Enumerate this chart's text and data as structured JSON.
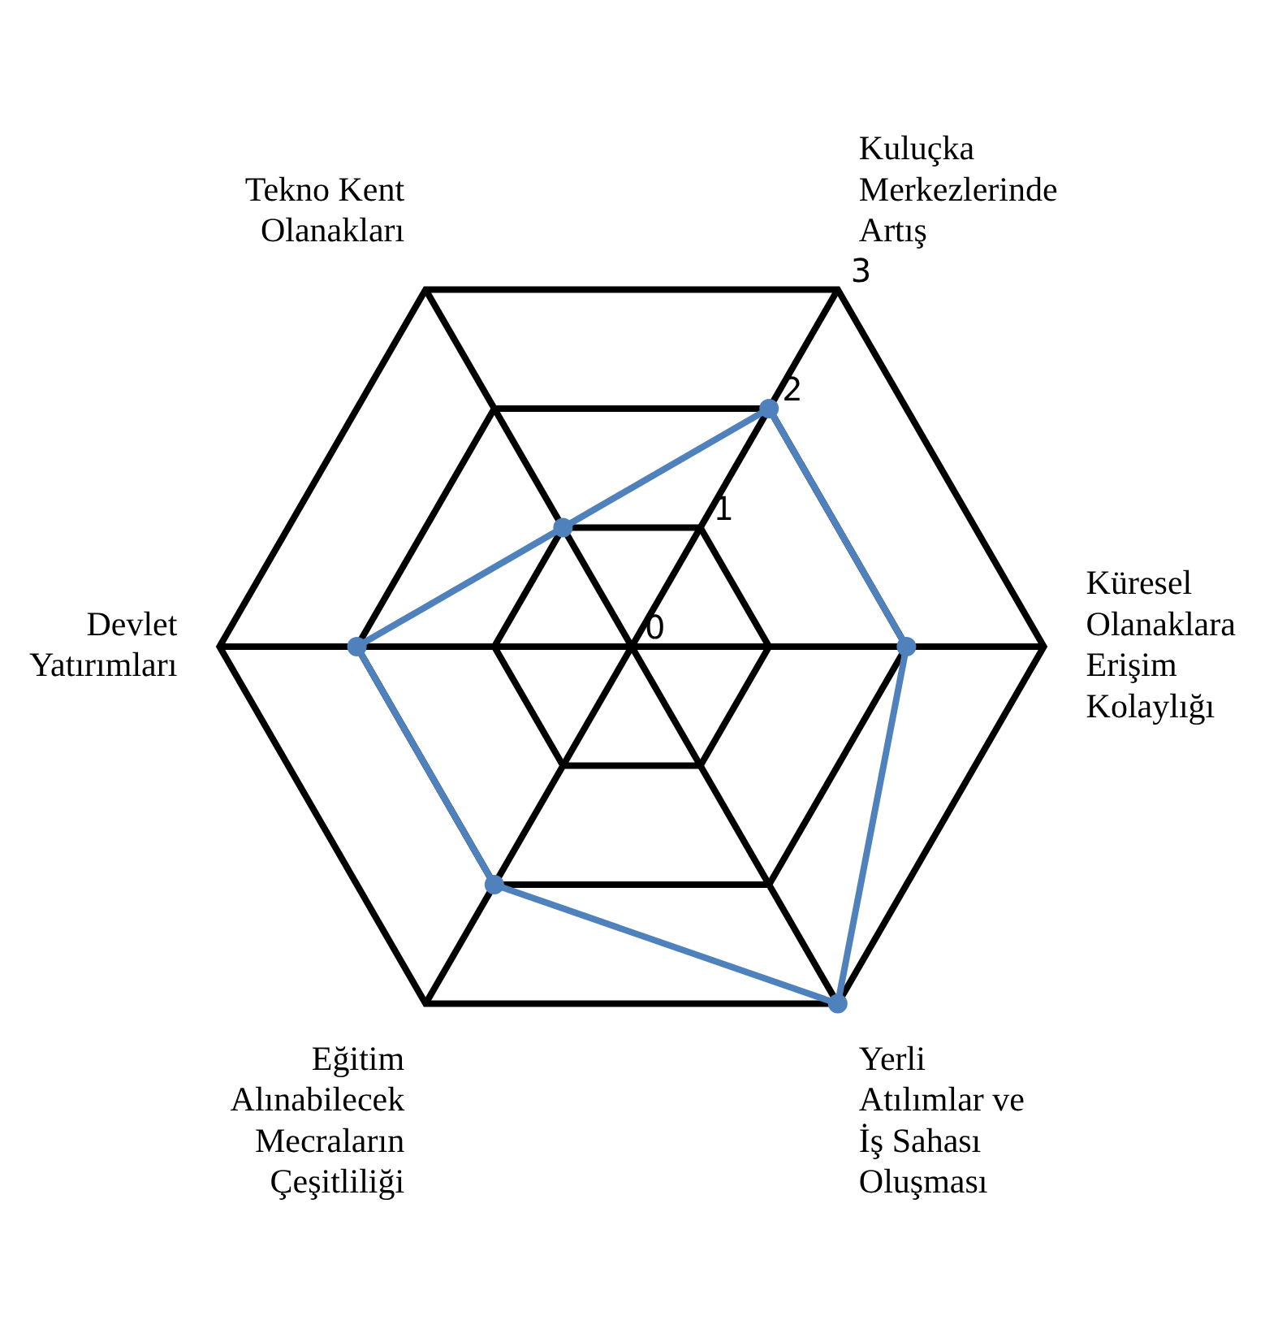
{
  "chart_data": {
    "type": "radar",
    "categories": [
      "Kuluçka Merkezlerinde Artış",
      "Küresel Olanaklara Erişim Kolaylığı",
      "Yerli Atılımlar ve İş Sahası Oluşması",
      "Eğitim Alınabilecek Mecraların Çeşitliliği",
      "Devlet Yatırımları",
      "Tekno Kent Olanakları"
    ],
    "series": [
      {
        "color": "#4f81bd",
        "values": [
          2,
          2,
          3,
          2,
          2,
          1
        ]
      }
    ],
    "ylim": [
      0,
      3
    ],
    "yticks": [
      0,
      1,
      2,
      3
    ],
    "grid": true,
    "legend": false,
    "marker": "circle"
  }
}
